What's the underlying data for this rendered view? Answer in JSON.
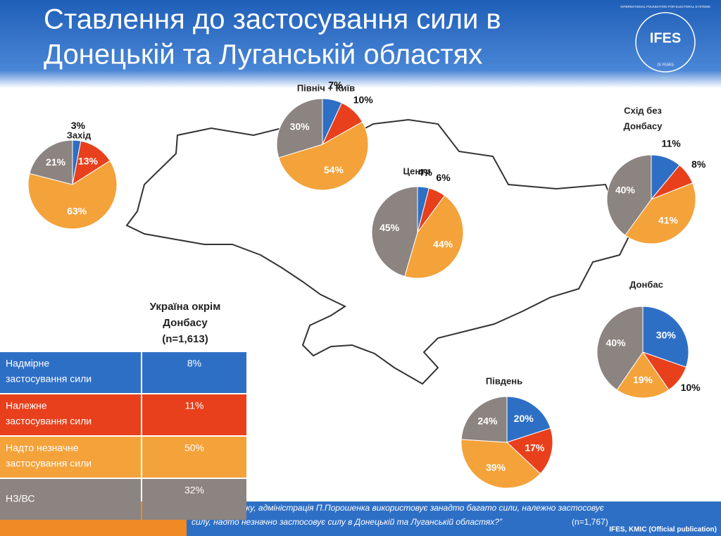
{
  "title": [
    "Ставлення до застосування сили в",
    "Донецькій та Луганській областях"
  ],
  "logo": {
    "name": "IFES",
    "org": "INTERNATIONAL FOUNDATION FOR ELECTORAL SYSTEMS",
    "years": "25 YEARS"
  },
  "chart_data": [
    {
      "type": "pie",
      "title": [
        "Захід"
      ],
      "values": [
        3,
        13,
        63,
        21
      ],
      "value_labels": [
        "3%",
        "13%",
        "63%",
        "21%"
      ],
      "colors": [
        "#2e6fc6",
        "#e8401c",
        "#f4a23a",
        "#8c8480"
      ]
    },
    {
      "type": "pie",
      "title": [
        "Північ + Київ"
      ],
      "values": [
        7,
        10,
        54,
        30
      ],
      "value_labels": [
        "7%",
        "10%",
        "54%",
        "30%"
      ],
      "colors": [
        "#2e6fc6",
        "#e8401c",
        "#f4a23a",
        "#8c8480"
      ]
    },
    {
      "type": "pie",
      "title": [
        "Центр"
      ],
      "values": [
        4,
        6,
        44,
        45
      ],
      "value_labels": [
        "4%",
        "6%",
        "44%",
        "45%"
      ],
      "colors": [
        "#2e6fc6",
        "#e8401c",
        "#f4a23a",
        "#8c8480"
      ]
    },
    {
      "type": "pie",
      "title": [
        "Схід без",
        "Донбасу"
      ],
      "values": [
        11,
        8,
        41,
        40
      ],
      "value_labels": [
        "11%",
        "8%",
        "41%",
        "40%"
      ],
      "colors": [
        "#2e6fc6",
        "#e8401c",
        "#f4a23a",
        "#8c8480"
      ]
    },
    {
      "type": "pie",
      "title": [
        "Донбас"
      ],
      "values": [
        30,
        10,
        19,
        40
      ],
      "value_labels": [
        "30%",
        "10%",
        "19%",
        "40%"
      ],
      "colors": [
        "#2e6fc6",
        "#e8401c",
        "#f4a23a",
        "#8c8480"
      ]
    },
    {
      "type": "pie",
      "title": [
        "Південь"
      ],
      "values": [
        20,
        17,
        39,
        24
      ],
      "value_labels": [
        "20%",
        "17%",
        "39%",
        "24%"
      ],
      "colors": [
        "#2e6fc6",
        "#e8401c",
        "#f4a23a",
        "#8c8480"
      ]
    }
  ],
  "table": {
    "title": [
      "Україна окрім",
      "Донбасу",
      "(n=1,613)"
    ],
    "colors": [
      "#2e6fc6",
      "#e8401c",
      "#f4a23a",
      "#8c8480"
    ],
    "rows": [
      [
        [
          "Надмірне",
          "застосування сили"
        ],
        "8%"
      ],
      [
        [
          "Належне",
          "застосування сили"
        ],
        "11%"
      ],
      [
        [
          "Надто незначне",
          "застосування сили"
        ],
        "50%"
      ],
      [
        [
          "НЗ/ВС"
        ],
        "32%"
      ]
    ]
  },
  "note": {
    "lines": [
      "“На Вашу думку, адміністрація П.Порошенка використовує занадто багато сили, належно застосовує",
      "силу, надто незначно застосовує силу в Донецькій та Луганській областях?”"
    ],
    "n": "(n=1,767)"
  },
  "source": "IFES, KMIC (Official publication)"
}
